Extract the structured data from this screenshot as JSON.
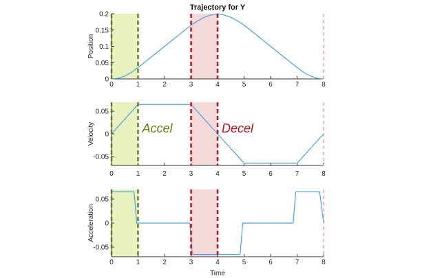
{
  "chart_data": {
    "type": "line",
    "title": "Trajectory for Y",
    "xlabel": "Time",
    "xlim": [
      0,
      8
    ],
    "x_ticks": [
      0,
      1,
      2,
      3,
      4,
      5,
      6,
      7,
      8
    ],
    "series_color": "#4aa3df",
    "panels": [
      {
        "id": "position",
        "ylabel": "Position",
        "ylim": [
          0,
          0.2
        ],
        "y_ticks": [
          0,
          0.05,
          0.1,
          0.15,
          0.2
        ],
        "y_tick_labels": [
          "0",
          "0.05",
          "0.1",
          "0.15",
          "0.2"
        ],
        "x": [
          0,
          0.25,
          0.5,
          0.75,
          1,
          2,
          3,
          3.25,
          3.5,
          3.75,
          4,
          4.25,
          4.5,
          4.75,
          5,
          6,
          7,
          7.25,
          7.5,
          7.75,
          8
        ],
        "y": [
          0,
          0.002,
          0.009,
          0.02,
          0.035,
          0.1,
          0.165,
          0.178,
          0.189,
          0.196,
          0.2,
          0.196,
          0.189,
          0.178,
          0.165,
          0.1,
          0.035,
          0.02,
          0.009,
          0.002,
          0
        ]
      },
      {
        "id": "velocity",
        "ylabel": "Velocity",
        "ylim": [
          -0.07,
          0.07
        ],
        "y_ticks": [
          -0.05,
          0,
          0.05
        ],
        "y_tick_labels": [
          "-0.05",
          "0",
          "0.05"
        ],
        "x": [
          0,
          1,
          3,
          5,
          7,
          8
        ],
        "y": [
          0,
          0.065,
          0.065,
          -0.065,
          -0.065,
          0
        ]
      },
      {
        "id": "acceleration",
        "ylabel": "Acceleration",
        "ylim": [
          -0.07,
          0.07
        ],
        "y_ticks": [
          -0.05,
          0,
          0.05
        ],
        "y_tick_labels": [
          "-0.05",
          "0",
          "0.05"
        ],
        "x": [
          0,
          0.85,
          0.95,
          2.95,
          3.05,
          4.85,
          4.95,
          6.85,
          6.95,
          7.85,
          8
        ],
        "y": [
          0.065,
          0.065,
          0,
          0,
          -0.065,
          -0.065,
          0,
          0,
          0.065,
          0.065,
          0
        ]
      }
    ],
    "regions": [
      {
        "label": "Accel",
        "x_start": 0,
        "x_end": 1,
        "fill": "#e8f2bf",
        "line": "#6b7d18",
        "text_color": "#6b7d18"
      },
      {
        "label": "Decel",
        "x_start": 3,
        "x_end": 4,
        "fill": "#f6d9d9",
        "line": "#c1121f",
        "text_color": "#c1121f"
      }
    ],
    "extra_boundary_x": 8,
    "extra_boundary_color": "#ef8b8b"
  }
}
